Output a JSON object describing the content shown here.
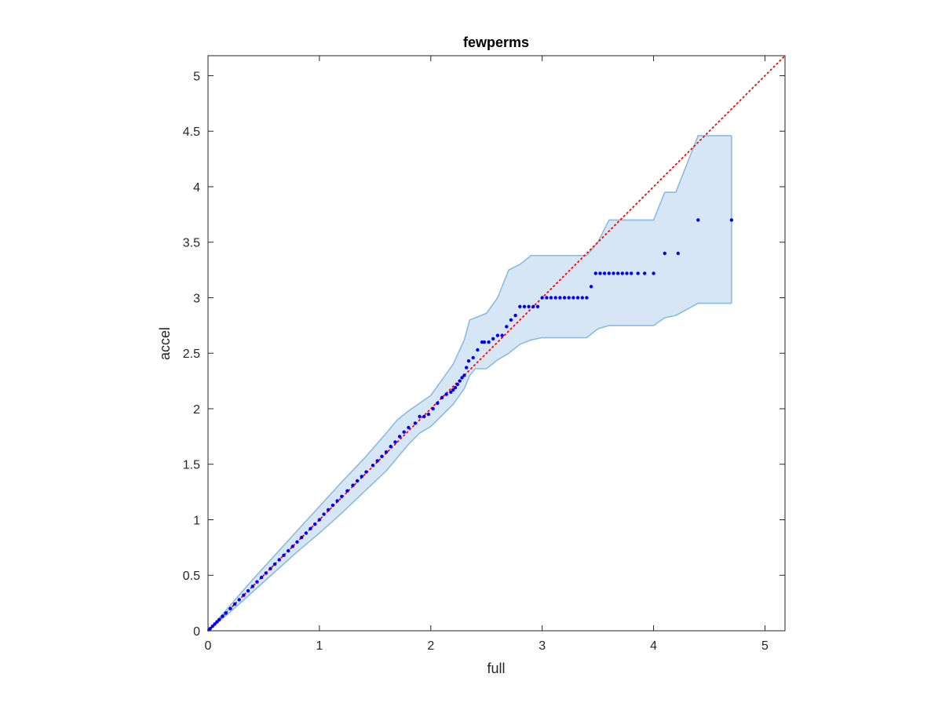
{
  "chart_data": {
    "type": "scatter",
    "title": "fewperms",
    "xlabel": "full",
    "ylabel": "accel",
    "xlim": [
      0,
      5.18
    ],
    "ylim": [
      0,
      5.18
    ],
    "xticks": [
      0,
      1,
      2,
      3,
      4,
      5
    ],
    "yticks": [
      0,
      0.5,
      1,
      1.5,
      2,
      2.5,
      3,
      3.5,
      4,
      4.5,
      5
    ],
    "xtick_labels": [
      "0",
      "1",
      "2",
      "3",
      "4",
      "5"
    ],
    "ytick_labels": [
      "0",
      "0.5",
      "1",
      "1.5",
      "2",
      "2.5",
      "3",
      "3.5",
      "4",
      "4.5",
      "5"
    ],
    "grid": false,
    "box": true,
    "colors": {
      "points": "#0000ff",
      "reference_line": "#ff0000",
      "band_fill": "#d6e6f4",
      "band_edge": "#8dbbda",
      "axis": "#262626"
    },
    "reference_line": {
      "x": [
        0,
        5.18
      ],
      "y": [
        0,
        5.18
      ],
      "style": "dotted"
    },
    "band": {
      "x": [
        0,
        0.2,
        0.4,
        0.6,
        0.8,
        1.0,
        1.2,
        1.4,
        1.6,
        1.7,
        1.8,
        1.9,
        2.0,
        2.1,
        2.2,
        2.3,
        2.35,
        2.4,
        2.5,
        2.6,
        2.7,
        2.8,
        2.9,
        3.0,
        3.2,
        3.4,
        3.5,
        3.6,
        3.8,
        4.0,
        4.1,
        4.2,
        4.4,
        4.7
      ],
      "upper": [
        0,
        0.23,
        0.46,
        0.68,
        0.9,
        1.12,
        1.34,
        1.55,
        1.78,
        1.9,
        1.98,
        2.05,
        2.12,
        2.26,
        2.4,
        2.62,
        2.8,
        2.82,
        2.86,
        3.0,
        3.25,
        3.3,
        3.38,
        3.38,
        3.38,
        3.38,
        3.5,
        3.7,
        3.7,
        3.7,
        3.95,
        3.95,
        4.46,
        4.46
      ],
      "lower": [
        0,
        0.17,
        0.35,
        0.53,
        0.71,
        0.88,
        1.06,
        1.25,
        1.44,
        1.56,
        1.68,
        1.78,
        1.84,
        1.94,
        2.04,
        2.18,
        2.3,
        2.36,
        2.36,
        2.44,
        2.5,
        2.58,
        2.62,
        2.64,
        2.64,
        2.64,
        2.72,
        2.75,
        2.75,
        2.75,
        2.82,
        2.84,
        2.95,
        2.95
      ]
    },
    "series": [
      {
        "x": [
          0.01,
          0.02,
          0.04,
          0.06,
          0.08,
          0.1,
          0.13,
          0.16,
          0.2,
          0.24,
          0.28,
          0.32,
          0.36,
          0.4,
          0.44,
          0.48,
          0.52,
          0.56,
          0.6,
          0.64,
          0.68,
          0.72,
          0.76,
          0.8,
          0.84,
          0.88,
          0.92,
          0.96,
          1.0,
          1.04,
          1.08,
          1.12,
          1.16,
          1.2,
          1.25,
          1.3,
          1.34,
          1.38,
          1.42,
          1.48,
          1.52,
          1.56,
          1.6,
          1.64,
          1.68,
          1.72,
          1.76,
          1.8,
          1.86,
          1.9,
          1.94,
          1.98,
          2.02,
          2.06,
          2.1,
          2.14,
          2.18,
          2.2,
          2.22,
          2.24,
          2.26,
          2.28,
          2.3,
          2.32,
          2.34,
          2.38,
          2.42,
          2.46,
          2.48,
          2.52,
          2.56,
          2.6,
          2.64,
          2.68,
          2.72,
          2.76,
          2.8,
          2.84,
          2.88,
          2.92,
          2.96,
          3.0,
          3.04,
          3.08,
          3.12,
          3.16,
          3.2,
          3.24,
          3.28,
          3.32,
          3.36,
          3.4,
          3.44,
          3.48,
          3.52,
          3.56,
          3.6,
          3.64,
          3.68,
          3.72,
          3.76,
          3.8,
          3.86,
          3.92,
          4.0,
          4.1,
          4.22,
          4.4,
          4.7
        ],
        "y": [
          0.01,
          0.02,
          0.04,
          0.06,
          0.08,
          0.1,
          0.13,
          0.16,
          0.2,
          0.24,
          0.28,
          0.32,
          0.36,
          0.4,
          0.44,
          0.48,
          0.52,
          0.56,
          0.6,
          0.64,
          0.68,
          0.72,
          0.76,
          0.8,
          0.84,
          0.88,
          0.92,
          0.96,
          1.0,
          1.05,
          1.09,
          1.13,
          1.17,
          1.21,
          1.26,
          1.31,
          1.35,
          1.39,
          1.43,
          1.49,
          1.53,
          1.57,
          1.61,
          1.66,
          1.7,
          1.75,
          1.79,
          1.83,
          1.87,
          1.93,
          1.93,
          1.95,
          2.0,
          2.05,
          2.1,
          2.13,
          2.15,
          2.17,
          2.19,
          2.22,
          2.25,
          2.28,
          2.3,
          2.37,
          2.43,
          2.46,
          2.53,
          2.6,
          2.6,
          2.6,
          2.63,
          2.66,
          2.66,
          2.74,
          2.8,
          2.84,
          2.92,
          2.92,
          2.92,
          2.92,
          2.92,
          3.0,
          3.0,
          3.0,
          3.0,
          3.0,
          3.0,
          3.0,
          3.0,
          3.0,
          3.0,
          3.0,
          3.1,
          3.22,
          3.22,
          3.22,
          3.22,
          3.22,
          3.22,
          3.22,
          3.22,
          3.22,
          3.22,
          3.22,
          3.22,
          3.4,
          3.4,
          3.7,
          3.7
        ]
      }
    ]
  }
}
